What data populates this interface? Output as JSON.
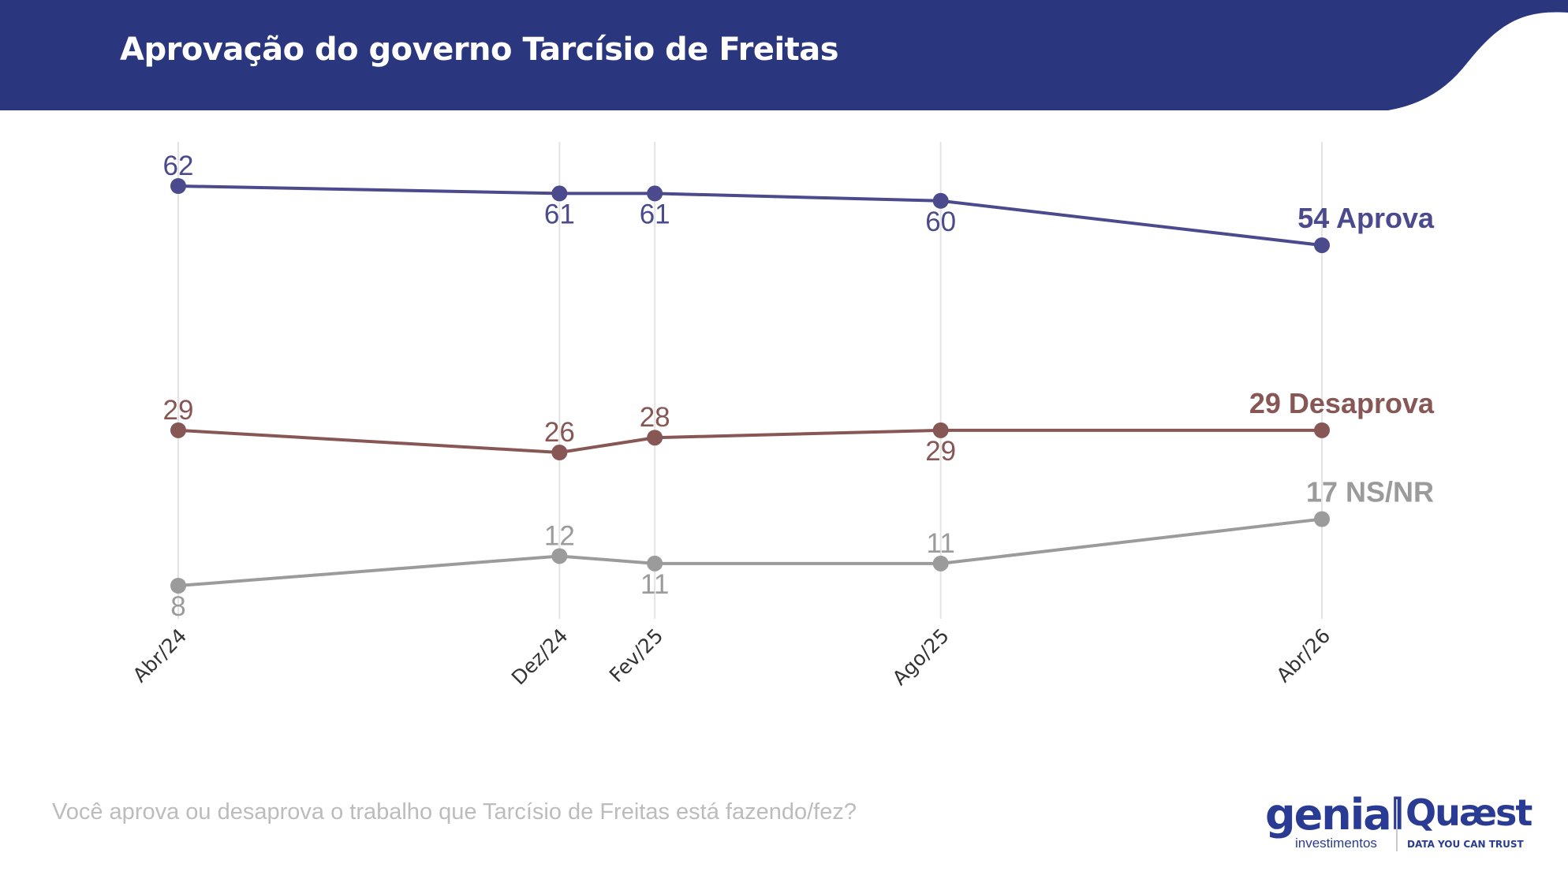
{
  "header": {
    "title": "Aprovação do governo Tarcísio de Freitas",
    "color": "#2a367e"
  },
  "question": "Você aprova ou desaprova o trabalho que Tarcísio de Freitas está fazendo/fez?",
  "logos": {
    "genial": {
      "name": "genial",
      "subtitle": "investimentos"
    },
    "quaest": {
      "name": "Quæst",
      "tagline": "DATA YOU CAN TRUST"
    }
  },
  "chart_data": {
    "type": "line",
    "title": "",
    "xlabel": "",
    "ylabel": "",
    "categories": [
      "Abr/24",
      "Dez/24",
      "Fev/25",
      "Ago/25",
      "Abr/26"
    ],
    "x_months": [
      0,
      8,
      10,
      16,
      24
    ],
    "ylim": [
      5,
      65
    ],
    "grid": {
      "vertical": true,
      "horizontal": false
    },
    "legend": "end-of-line labels",
    "series": [
      {
        "name": "Aprova",
        "end_label": "54 Aprova",
        "color": "#4a4a8c",
        "values": [
          62,
          61,
          61,
          60,
          54
        ],
        "label_pos": [
          "above",
          "below",
          "below",
          "below",
          "none"
        ]
      },
      {
        "name": "Desaprova",
        "end_label": "29 Desaprova",
        "color": "#875755",
        "values": [
          29,
          26,
          28,
          29,
          29
        ],
        "label_pos": [
          "above",
          "above",
          "above",
          "below",
          "none"
        ]
      },
      {
        "name": "NS/NR",
        "end_label": "17 NS/NR",
        "color": "#9b9b9b",
        "values": [
          8,
          12,
          11,
          11,
          17
        ],
        "label_pos": [
          "below",
          "above",
          "below",
          "above",
          "none"
        ]
      }
    ]
  }
}
